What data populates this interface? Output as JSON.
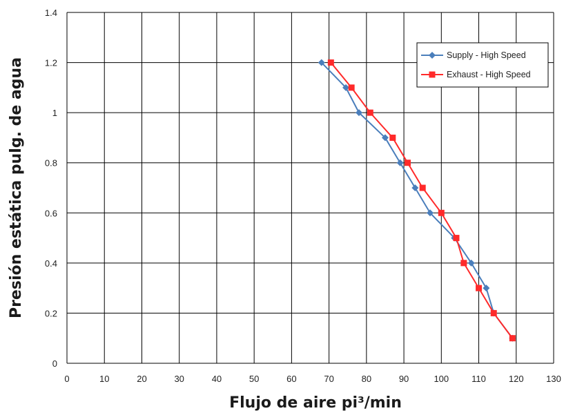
{
  "chart_data": {
    "type": "line",
    "title": "",
    "xlabel": "Flujo de aire pi³/min",
    "ylabel": "Presión estática pulg. de agua",
    "xlim": [
      0,
      130
    ],
    "ylim": [
      0,
      1.4
    ],
    "xticks": [
      "0",
      "10",
      "20",
      "30",
      "40",
      "50",
      "60",
      "70",
      "80",
      "90",
      "100",
      "110",
      "120",
      "130"
    ],
    "yticks": [
      "0",
      "0.2",
      "0.4",
      "0.6",
      "0.8",
      "1",
      "1.2",
      "1.4"
    ],
    "grid": true,
    "legend_position": "top-right",
    "series": [
      {
        "name": "Supply - High Speed",
        "color": "#4a7ebb",
        "marker": "diamond",
        "points": [
          {
            "x": 68,
            "y": 1.2
          },
          {
            "x": 74.5,
            "y": 1.1
          },
          {
            "x": 78,
            "y": 1.0
          },
          {
            "x": 85,
            "y": 0.9
          },
          {
            "x": 89,
            "y": 0.8
          },
          {
            "x": 93,
            "y": 0.7
          },
          {
            "x": 97,
            "y": 0.6
          },
          {
            "x": 103.5,
            "y": 0.5
          },
          {
            "x": 108,
            "y": 0.4
          },
          {
            "x": 112,
            "y": 0.3
          },
          {
            "x": 114,
            "y": 0.2
          },
          {
            "x": 119,
            "y": 0.1
          }
        ]
      },
      {
        "name": "Exhaust - High Speed",
        "color": "#ff2a2a",
        "marker": "square",
        "points": [
          {
            "x": 70.5,
            "y": 1.2
          },
          {
            "x": 76,
            "y": 1.1
          },
          {
            "x": 81,
            "y": 1.0
          },
          {
            "x": 87,
            "y": 0.9
          },
          {
            "x": 91,
            "y": 0.8
          },
          {
            "x": 95,
            "y": 0.7
          },
          {
            "x": 100,
            "y": 0.6
          },
          {
            "x": 104,
            "y": 0.5
          },
          {
            "x": 106,
            "y": 0.4
          },
          {
            "x": 110,
            "y": 0.3
          },
          {
            "x": 114,
            "y": 0.2
          },
          {
            "x": 119,
            "y": 0.1
          }
        ]
      }
    ]
  }
}
